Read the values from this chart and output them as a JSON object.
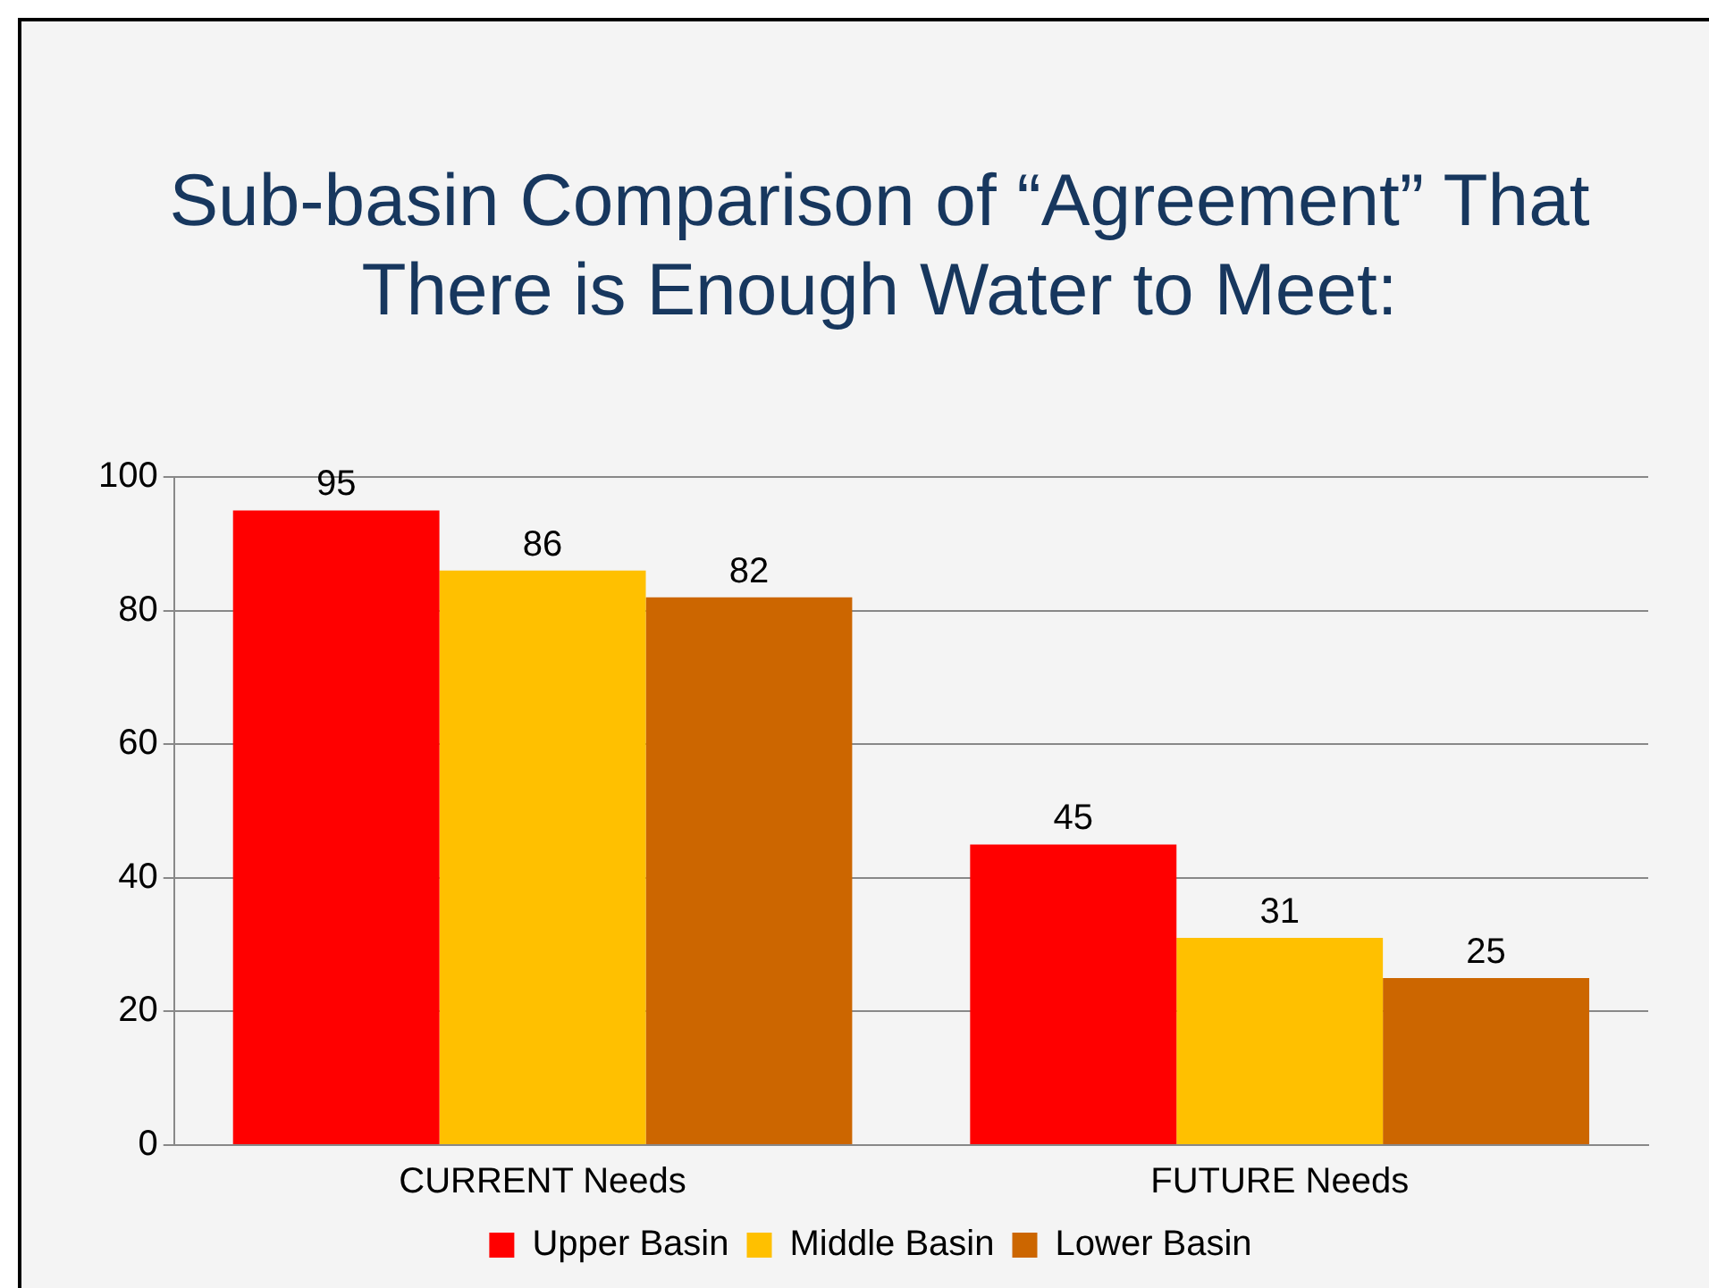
{
  "chart_data": {
    "type": "bar",
    "title": "Sub-basin Comparison of “Agreement” That There is Enough Water to Meet:",
    "categories": [
      "CURRENT Needs",
      "FUTURE Needs"
    ],
    "series": [
      {
        "name": "Upper Basin",
        "color": "#ff0000",
        "values": [
          95,
          45
        ]
      },
      {
        "name": "Middle Basin",
        "color": "#ffc000",
        "values": [
          86,
          31
        ]
      },
      {
        "name": "Lower Basin",
        "color": "#cc6600",
        "values": [
          82,
          25
        ]
      }
    ],
    "ylim": [
      0,
      100
    ],
    "yticks": [
      0,
      20,
      40,
      60,
      80,
      100
    ],
    "grid": "y",
    "legend": "bottom",
    "data_labels": true
  }
}
